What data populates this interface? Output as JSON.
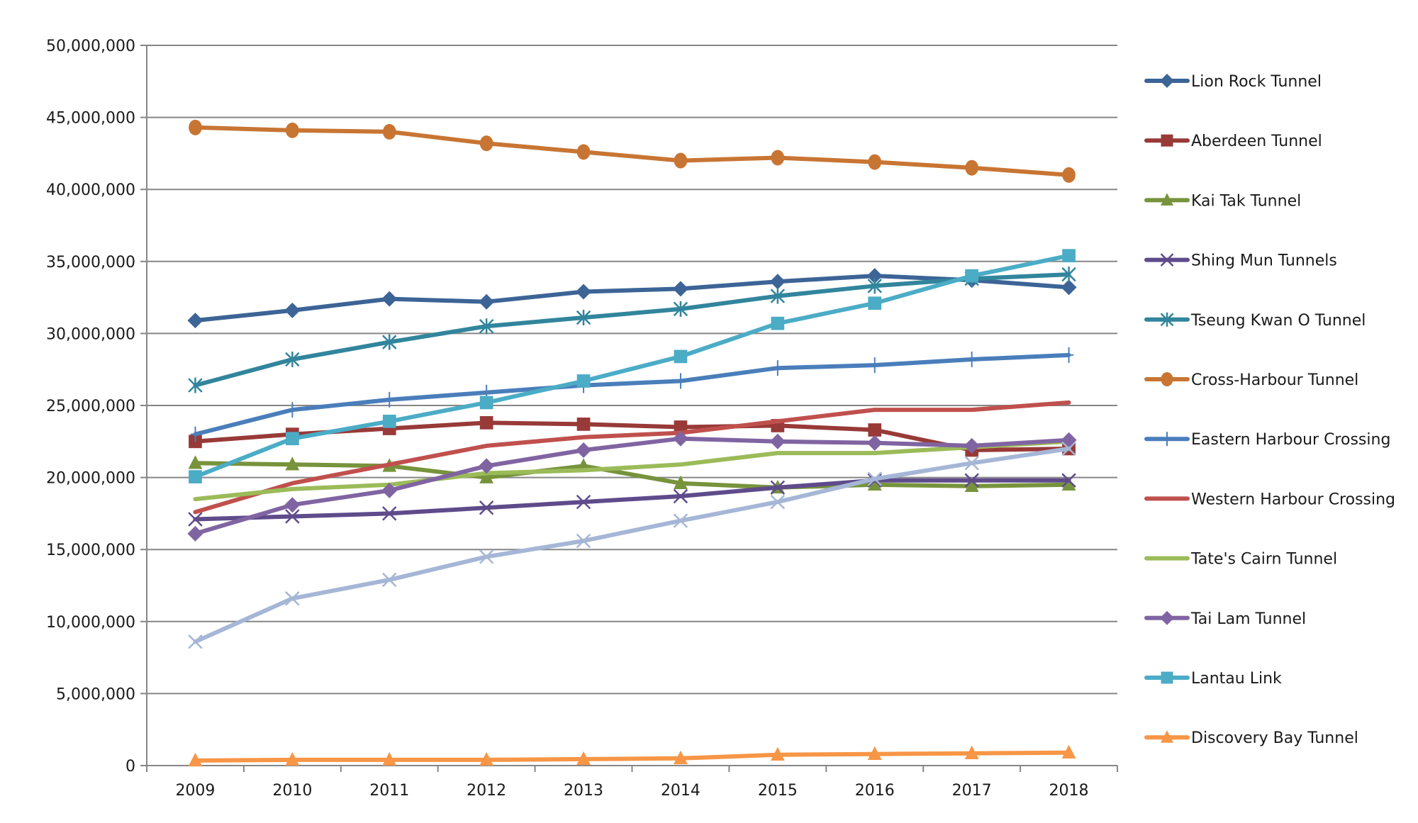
{
  "chart_data": {
    "type": "line",
    "title": "",
    "xlabel": "",
    "ylabel": "",
    "x": [
      "2009",
      "2010",
      "2011",
      "2012",
      "2013",
      "2014",
      "2015",
      "2016",
      "2017",
      "2018"
    ],
    "ylim": [
      0,
      50000000
    ],
    "yticks": [
      0,
      5000000,
      10000000,
      15000000,
      20000000,
      25000000,
      30000000,
      35000000,
      40000000,
      45000000,
      50000000
    ],
    "ytick_labels": [
      "0",
      "5,000,000",
      "10,000,000",
      "15,000,000",
      "20,000,000",
      "25,000,000",
      "30,000,000",
      "35,000,000",
      "40,000,000",
      "45,000,000",
      "50,000,000"
    ],
    "grid": "horizontal",
    "legend_position": "right",
    "series": [
      {
        "name": "Lion Rock Tunnel",
        "color": "#3c6496",
        "marker": "diamond",
        "in_legend": true,
        "values": [
          30900000,
          31600000,
          32400000,
          32200000,
          32900000,
          33100000,
          33600000,
          34000000,
          33700000,
          33200000
        ]
      },
      {
        "name": "Aberdeen Tunnel",
        "color": "#983a38",
        "marker": "square",
        "in_legend": true,
        "values": [
          22500000,
          23000000,
          23400000,
          23800000,
          23700000,
          23500000,
          23600000,
          23300000,
          21900000,
          22000000
        ]
      },
      {
        "name": "Kai Tak Tunnel",
        "color": "#77933c",
        "marker": "triangle",
        "in_legend": true,
        "values": [
          21000000,
          20900000,
          20800000,
          20000000,
          20800000,
          19600000,
          19300000,
          19500000,
          19400000,
          19500000
        ]
      },
      {
        "name": "Shing Mun Tunnels",
        "color": "#5f4b8b",
        "marker": "x",
        "in_legend": true,
        "values": [
          17100000,
          17300000,
          17500000,
          17900000,
          18300000,
          18700000,
          19300000,
          19800000,
          19800000,
          19800000
        ]
      },
      {
        "name": "Tseung Kwan O Tunnel",
        "color": "#31859c",
        "marker": "asterisk",
        "in_legend": true,
        "values": [
          26400000,
          28200000,
          29400000,
          30500000,
          31100000,
          31700000,
          32600000,
          33300000,
          33800000,
          34100000
        ]
      },
      {
        "name": "Cross-Harbour Tunnel",
        "color": "#c87533",
        "marker": "circle",
        "in_legend": true,
        "values": [
          44300000,
          44100000,
          44000000,
          43200000,
          42600000,
          42000000,
          42200000,
          41900000,
          41500000,
          41000000
        ]
      },
      {
        "name": "Eastern Harbour Crossing",
        "color": "#4a7ebb",
        "marker": "plus",
        "in_legend": true,
        "values": [
          23000000,
          24700000,
          25400000,
          25900000,
          26400000,
          26700000,
          27600000,
          27800000,
          28200000,
          28500000
        ]
      },
      {
        "name": "Western Harbour Crossing",
        "color": "#c0504d",
        "marker": "none",
        "in_legend": true,
        "values": [
          17600000,
          19600000,
          20900000,
          22200000,
          22800000,
          23100000,
          23900000,
          24700000,
          24700000,
          25200000
        ]
      },
      {
        "name": "Tate's Cairn Tunnel",
        "color": "#9bbb59",
        "marker": "none",
        "in_legend": true,
        "values": [
          18500000,
          19200000,
          19500000,
          20300000,
          20500000,
          20900000,
          21700000,
          21700000,
          22100000,
          22500000
        ]
      },
      {
        "name": "Tai Lam Tunnel",
        "color": "#8064a2",
        "marker": "diamond",
        "in_legend": true,
        "values": [
          16100000,
          18100000,
          19100000,
          20800000,
          21900000,
          22700000,
          22500000,
          22400000,
          22200000,
          22600000
        ]
      },
      {
        "name": "Lantau Link",
        "color": "#4bacc6",
        "marker": "square",
        "in_legend": true,
        "values": [
          20050000,
          22700000,
          23900000,
          25200000,
          26700000,
          28400000,
          30700000,
          32100000,
          34000000,
          35400000
        ]
      },
      {
        "name": "Discovery Bay Tunnel",
        "color": "#f79646",
        "marker": "triangle",
        "in_legend": true,
        "values": [
          350000,
          400000,
          400000,
          400000,
          450000,
          500000,
          750000,
          800000,
          850000,
          900000
        ]
      },
      {
        "name": "",
        "color": "#a5b6d6",
        "marker": "x",
        "in_legend": false,
        "values": [
          8600000,
          11600000,
          12900000,
          14500000,
          15600000,
          17000000,
          18300000,
          19900000,
          21000000,
          22000000
        ]
      }
    ]
  }
}
